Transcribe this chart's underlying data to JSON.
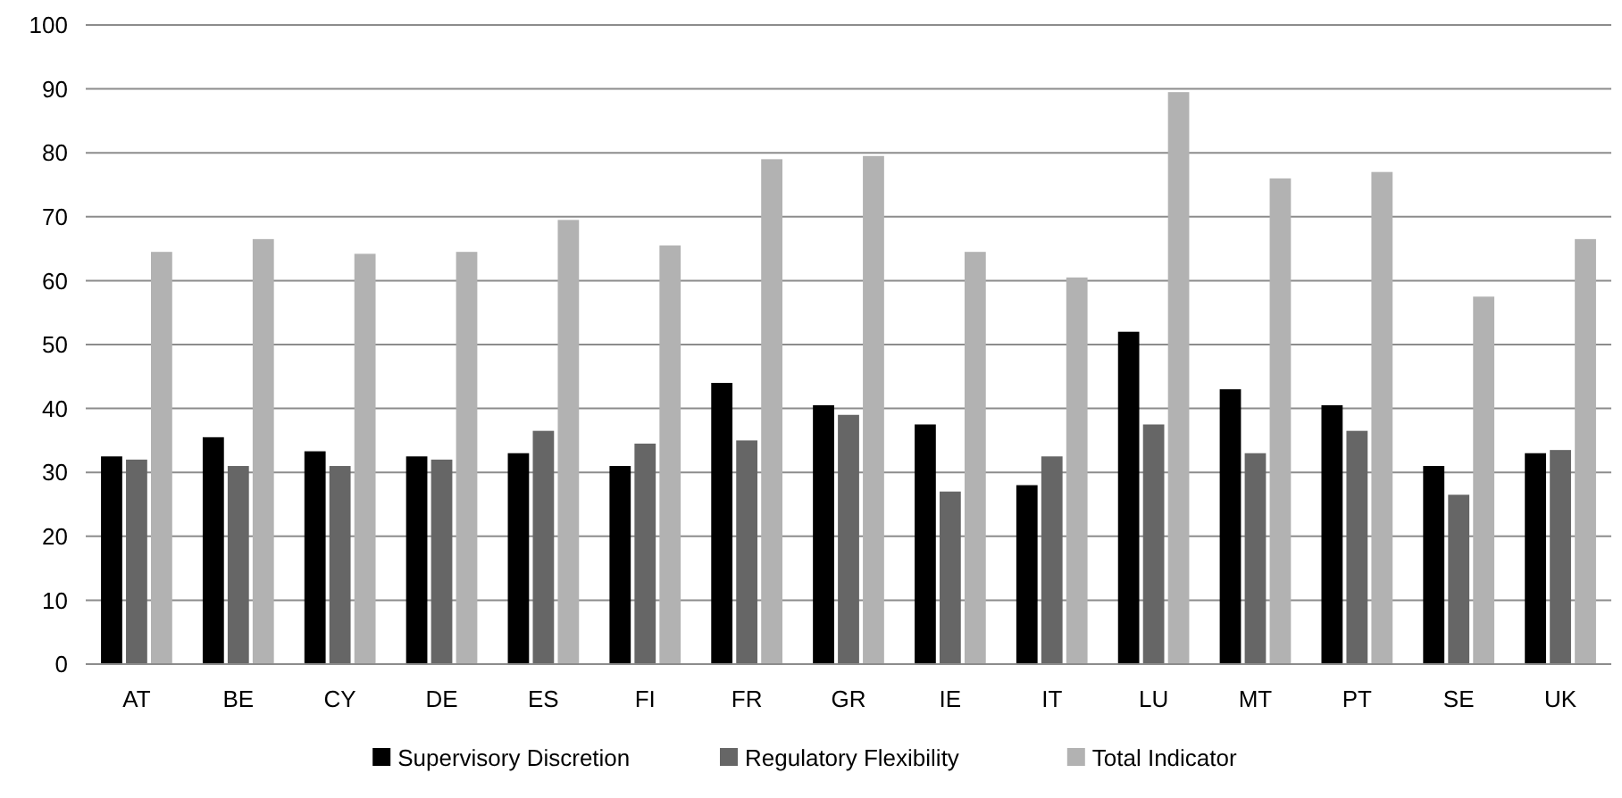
{
  "chart_data": {
    "type": "bar",
    "categories": [
      "AT",
      "BE",
      "CY",
      "DE",
      "ES",
      "FI",
      "FR",
      "GR",
      "IE",
      "IT",
      "LU",
      "MT",
      "PT",
      "SE",
      "UK"
    ],
    "series": [
      {
        "name": "Supervisory Discretion",
        "color": "#000000",
        "values": [
          32.5,
          35.5,
          33.3,
          32.5,
          33,
          31,
          44,
          40.5,
          37.5,
          28,
          52,
          43,
          40.5,
          31,
          33
        ]
      },
      {
        "name": "Regulatory Flexibility",
        "color": "#666666",
        "values": [
          32,
          31,
          31,
          32,
          36.5,
          34.5,
          35,
          39,
          27,
          32.5,
          37.5,
          33,
          36.5,
          26.5,
          33.5
        ]
      },
      {
        "name": "Total Indicator",
        "color": "#b2b2b2",
        "values": [
          64.5,
          66.5,
          64.2,
          64.5,
          69.5,
          65.5,
          79,
          79.5,
          64.5,
          60.5,
          89.5,
          76,
          77,
          57.5,
          66.5
        ]
      }
    ],
    "ylim": [
      0,
      100
    ],
    "yticks": [
      0,
      10,
      20,
      30,
      40,
      50,
      60,
      70,
      80,
      90,
      100
    ],
    "grid": "y",
    "legend": "bottom"
  }
}
